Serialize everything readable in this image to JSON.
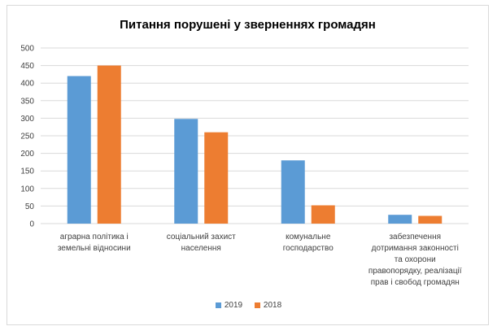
{
  "chart_data": {
    "type": "bar",
    "title": "Питання порушені у зверненнях громадян",
    "categories": [
      [
        "аграрна політика і",
        "земельні відносини"
      ],
      [
        "соціальний захист",
        "населення"
      ],
      [
        "комунальне",
        "господарство"
      ],
      [
        "забезпечення",
        "дотримання законності",
        "та охорони",
        "правопорядку, реалізації",
        "прав і свобод громадян"
      ]
    ],
    "series": [
      {
        "name": "2019",
        "color": "#5b9bd5",
        "values": [
          420,
          298,
          180,
          25
        ]
      },
      {
        "name": "2018",
        "color": "#ed7d31",
        "values": [
          450,
          260,
          52,
          22
        ]
      }
    ],
    "ylim": [
      0,
      500
    ],
    "yticks": [
      0,
      50,
      100,
      150,
      200,
      250,
      300,
      350,
      400,
      450,
      500
    ],
    "grid": true,
    "legend_position": "bottom"
  }
}
